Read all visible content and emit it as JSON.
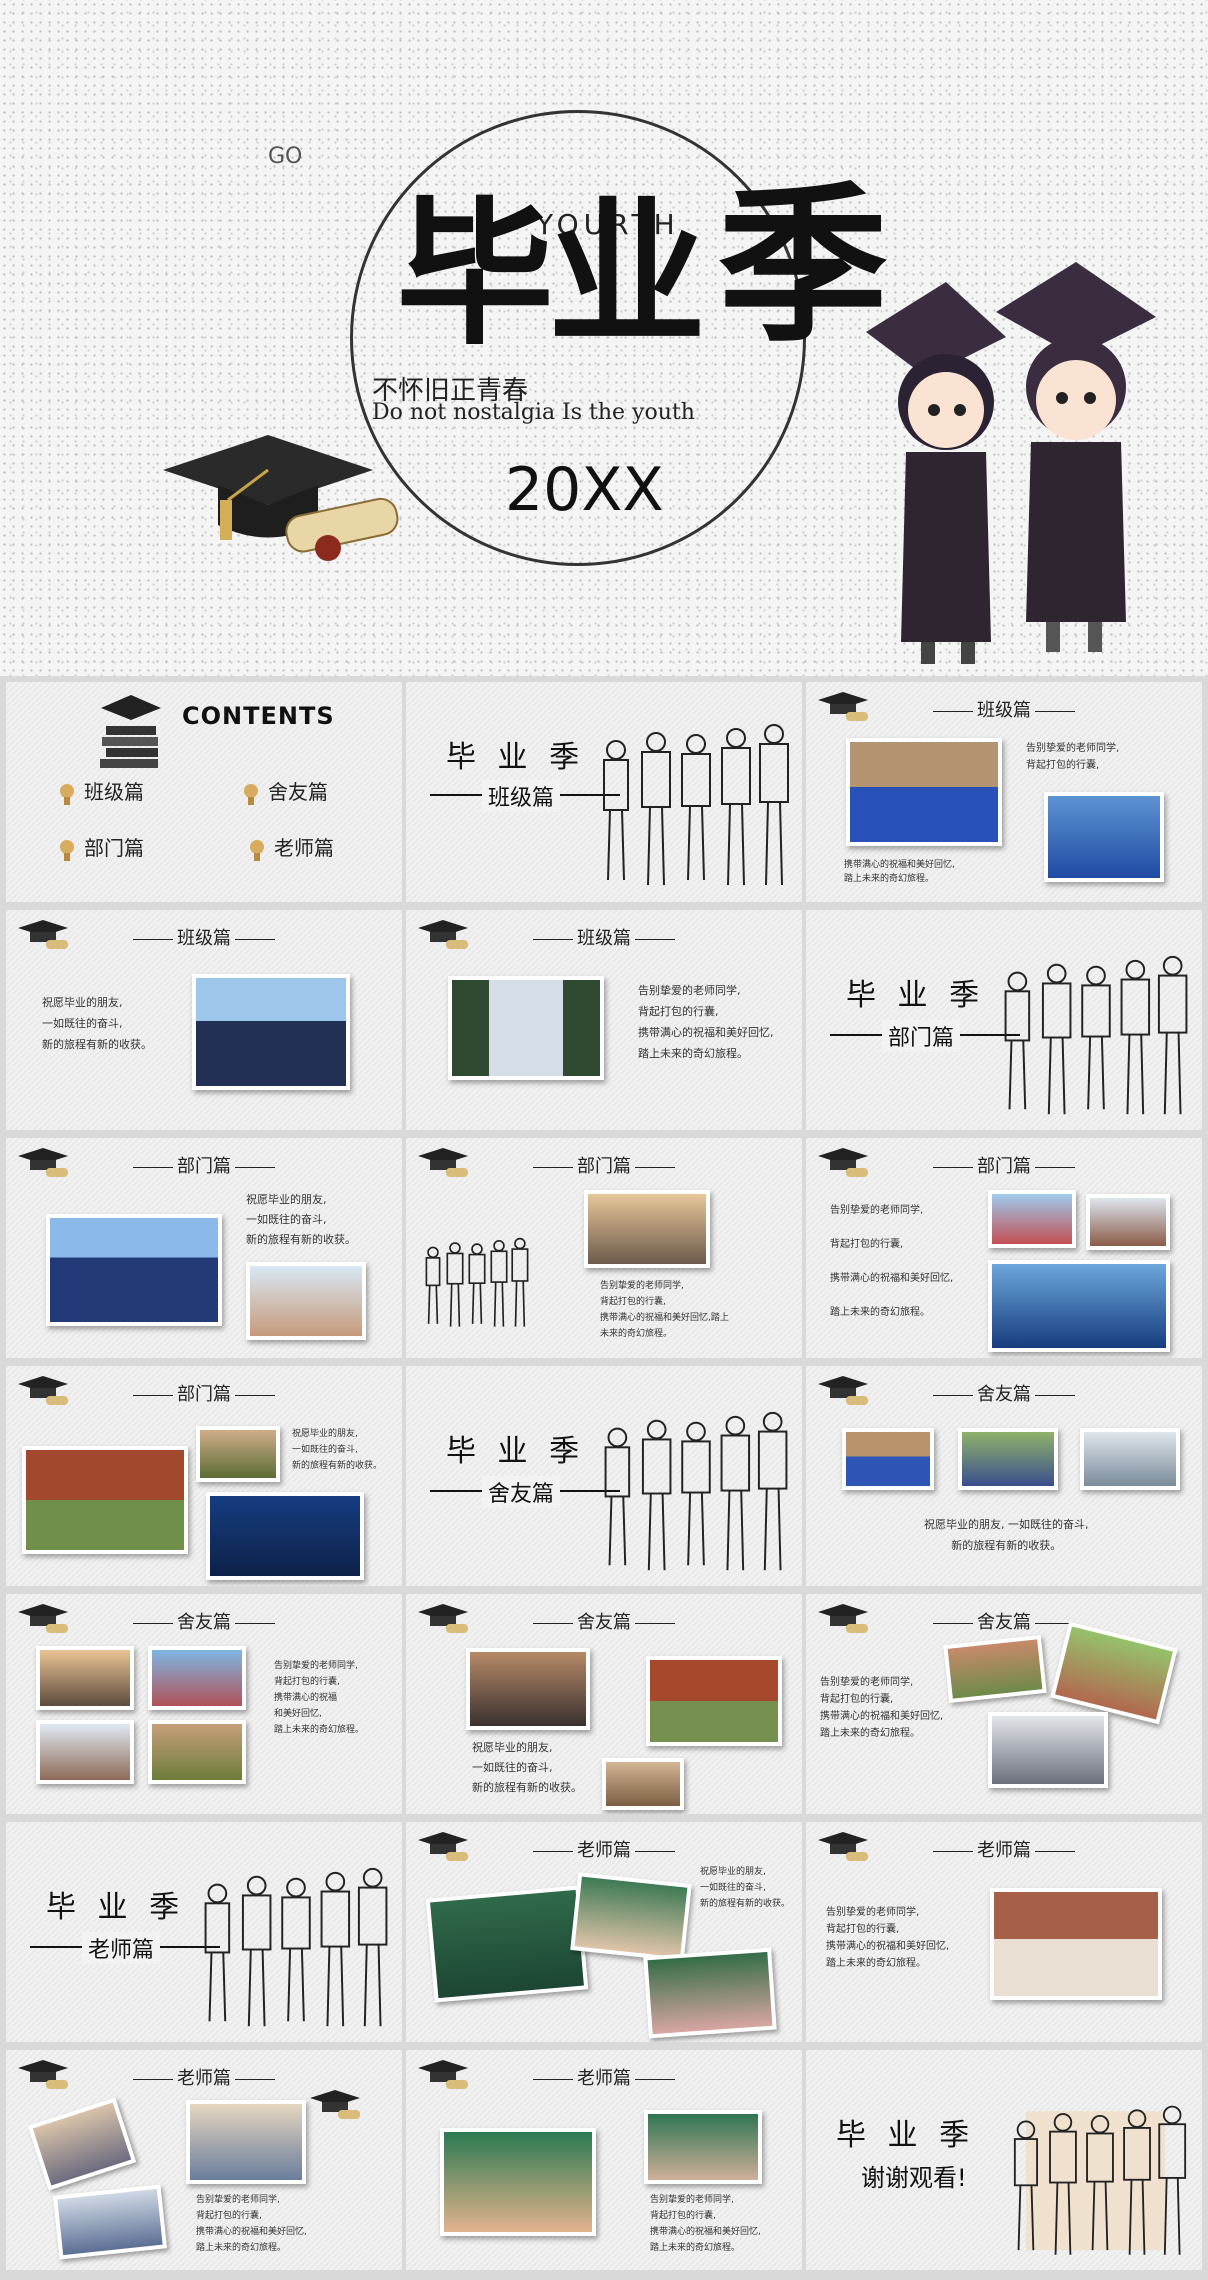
{
  "hero": {
    "go": "GO",
    "yourth": "YOURTH",
    "title_part1": "毕业",
    "title_part2": "季",
    "subtitle_cn": "不怀旧正青春",
    "subtitle_en": "Do not nostalgia Is the youth",
    "year": "20XX"
  },
  "contents": {
    "title": "CONTENTS",
    "items": [
      "班级篇",
      "舍友篇",
      "部门篇",
      "老师篇"
    ]
  },
  "section": {
    "title": "毕 业 季",
    "class": "班级篇",
    "dept": "部门篇",
    "dorm": "舍友篇",
    "teacher": "老师篇",
    "thanks": "谢谢观看!"
  },
  "texts": {
    "t1": "告别挚爱的老师同学,\n背起打包的行囊,",
    "t1b": "携带满心的祝福和美好回忆,\n踏上未来的奇幻旅程。",
    "wish": "祝愿毕业的朋友,\n一如既往的奋斗,\n新的旅程有新的收获。",
    "farewell": "告别挚爱的老师同学,\n背起打包的行囊,\n携带满心的祝福和美好回忆,\n踏上未来的奇幻旅程。",
    "farewell_spaced": "告别挚爱的老师同学,\n\n背起打包的行囊,\n\n携带满心的祝福和美好回忆,\n\n踏上未来的奇幻旅程。",
    "farewell_wrap": "告别挚爱的老师同学,\n背起打包的行囊,\n携带满心的祝福和美好回忆,踏上\n未来的奇幻旅程。",
    "wish_line": "祝愿毕业的朋友, 一如既往的奋斗,\n新的旅程有新的收获。",
    "farewell_short": "告别挚爱的老师同学,\n背起打包的行囊,\n携带满心的祝福\n和美好回忆,\n踏上未来的奇幻旅程。"
  }
}
